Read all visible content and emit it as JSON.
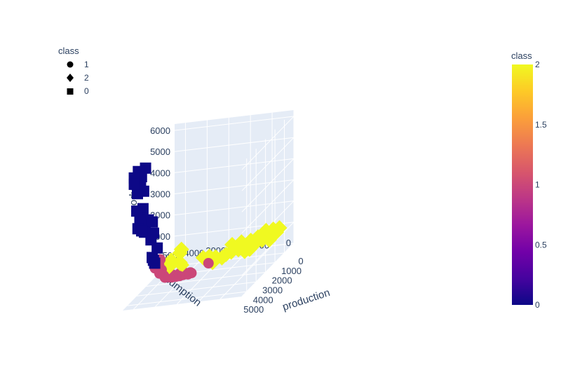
{
  "chart_data": {
    "type": "scatter3d",
    "axes": {
      "x": {
        "label": "production",
        "ticks": [
          0,
          1000,
          2000,
          3000,
          4000,
          5000
        ],
        "tick_labels": [
          "0",
          "1000",
          "2000",
          "3000",
          "4000",
          "5000"
        ],
        "range": [
          0,
          5500
        ]
      },
      "y": {
        "label": "consumption",
        "ticks": [
          0,
          1000,
          2000,
          3000,
          4000,
          5000
        ],
        "tick_labels": [
          "0",
          "1000",
          "2000",
          "3000",
          "4000",
          "5000"
        ],
        "range": [
          0,
          5500
        ]
      },
      "z": {
        "label": "export",
        "ticks": [
          0,
          1000,
          2000,
          3000,
          4000,
          5000,
          6000
        ],
        "tick_labels": [
          "0",
          "1000",
          "2000",
          "3000",
          "4000",
          "5000",
          "6000"
        ],
        "range": [
          0,
          6300
        ]
      }
    },
    "legend": {
      "title": "class",
      "placement": "top-left",
      "entries": [
        {
          "label": "1",
          "symbol": "circle"
        },
        {
          "label": "2",
          "symbol": "diamond"
        },
        {
          "label": "0",
          "symbol": "square"
        }
      ]
    },
    "colorbar": {
      "title": "class",
      "range": [
        0,
        2
      ],
      "ticks": [
        "0",
        "0.5",
        "1",
        "1.5",
        "2"
      ],
      "tick_values": [
        0,
        0.5,
        1,
        1.5,
        2
      ],
      "colorscale": [
        "#0d0887",
        "#46039f",
        "#7201a8",
        "#9c179e",
        "#bd3786",
        "#d8576b",
        "#ed7953",
        "#fb9f3a",
        "#fdca26",
        "#f0f921"
      ]
    },
    "series": [
      {
        "name": "1",
        "class": 1,
        "symbol": "circle",
        "points": [
          [
            4500,
            4200,
            1800
          ],
          [
            4550,
            4300,
            1650
          ],
          [
            4520,
            4250,
            1550
          ],
          [
            4600,
            4400,
            1450
          ],
          [
            4480,
            4150,
            1300
          ],
          [
            4520,
            4230,
            1150
          ],
          [
            4700,
            3900,
            1000
          ],
          [
            4480,
            3800,
            900
          ],
          [
            4400,
            3700,
            850
          ],
          [
            4250,
            3600,
            800
          ],
          [
            4100,
            3500,
            750
          ],
          [
            3950,
            3400,
            720
          ],
          [
            3850,
            3300,
            700
          ],
          [
            3750,
            3250,
            680
          ],
          [
            3650,
            3200,
            660
          ],
          [
            3600,
            3200,
            650
          ],
          [
            3650,
            3300,
            600
          ],
          [
            3500,
            3200,
            580
          ],
          [
            5600,
            1500,
            1800
          ],
          [
            4700,
            3950,
            1100
          ],
          [
            4350,
            3700,
            950
          ],
          [
            4050,
            3500,
            850
          ],
          [
            3900,
            3350,
            800
          ]
        ]
      },
      {
        "name": "2",
        "class": 2,
        "symbol": "diamond",
        "points": [
          [
            4100,
            3400,
            2000
          ],
          [
            4150,
            3450,
            1850
          ],
          [
            4500,
            3700,
            1700
          ],
          [
            4600,
            3800,
            1600
          ],
          [
            4700,
            3700,
            1500
          ],
          [
            4250,
            3400,
            1450
          ],
          [
            4200,
            3350,
            1300
          ],
          [
            3400,
            2700,
            1200
          ],
          [
            3200,
            2500,
            1150
          ],
          [
            3000,
            2300,
            1000
          ],
          [
            2500,
            1800,
            950
          ],
          [
            2200,
            1600,
            900
          ],
          [
            1900,
            1300,
            900
          ],
          [
            1500,
            1000,
            1100
          ],
          [
            800,
            600,
            1100
          ],
          [
            600,
            400,
            1050
          ],
          [
            2400,
            1800,
            1250
          ],
          [
            2100,
            1500,
            1200
          ],
          [
            1800,
            1200,
            1100
          ],
          [
            1600,
            1100,
            1000
          ],
          [
            1100,
            800,
            1200
          ],
          [
            1200,
            900,
            1050
          ],
          [
            2600,
            2000,
            900
          ],
          [
            2800,
            2100,
            850
          ],
          [
            1300,
            900,
            850
          ],
          [
            1500,
            1200,
            750
          ],
          [
            1000,
            700,
            700
          ],
          [
            700,
            500,
            900
          ],
          [
            3100,
            2400,
            800
          ],
          [
            2000,
            1400,
            700
          ],
          [
            1700,
            1300,
            650
          ]
        ]
      },
      {
        "name": "0",
        "class": 0,
        "symbol": "square",
        "points": [
          [
            4500,
            5400,
            5800
          ],
          [
            4300,
            5300,
            6000
          ],
          [
            4000,
            5100,
            6000
          ],
          [
            4200,
            5200,
            5700
          ],
          [
            4500,
            5400,
            5500
          ],
          [
            4300,
            5200,
            5300
          ],
          [
            4400,
            5300,
            5000
          ],
          [
            4200,
            5100,
            5000
          ],
          [
            4700,
            5200,
            4300
          ],
          [
            4500,
            5000,
            4300
          ],
          [
            4600,
            5100,
            3800
          ],
          [
            4700,
            5000,
            3600
          ],
          [
            4800,
            5100,
            3500
          ],
          [
            4400,
            4800,
            3700
          ],
          [
            4200,
            4700,
            3500
          ],
          [
            4500,
            4900,
            3300
          ],
          [
            4300,
            4600,
            3000
          ],
          [
            4900,
            4900,
            3700
          ],
          [
            4800,
            4800,
            3300
          ],
          [
            5100,
            4800,
            3500
          ],
          [
            4800,
            4500,
            2900
          ],
          [
            4600,
            4300,
            2400
          ],
          [
            4900,
            4400,
            2100
          ],
          [
            5000,
            4300,
            2000
          ],
          [
            5100,
            4200,
            1900
          ],
          [
            4550,
            5000,
            3850
          ],
          [
            4600,
            4950,
            3550
          ]
        ]
      }
    ]
  }
}
